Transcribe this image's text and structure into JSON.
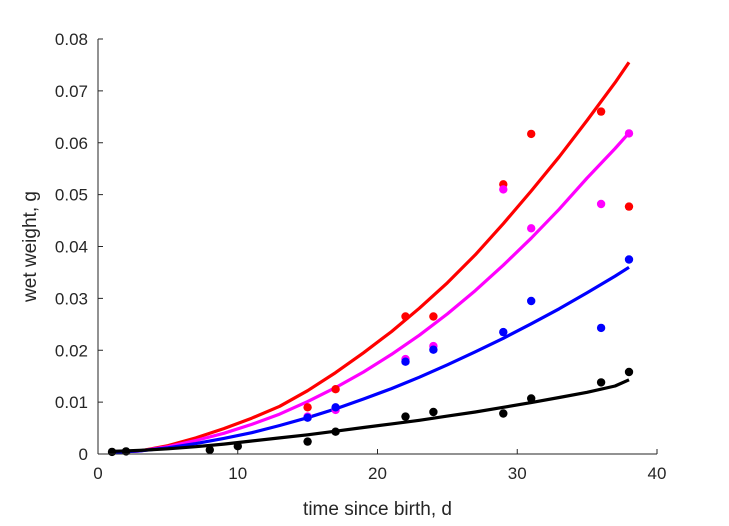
{
  "chart_data": {
    "type": "scatter",
    "xlabel": "time since birth, d",
    "ylabel": "wet weight, g",
    "xlim": [
      0,
      40
    ],
    "ylim": [
      0,
      0.08
    ],
    "xticks": [
      0,
      10,
      20,
      30,
      40
    ],
    "yticks": [
      0,
      0.01,
      0.02,
      0.03,
      0.04,
      0.05,
      0.06,
      0.07,
      0.08
    ],
    "x_tick_labels": [
      "0",
      "10",
      "20",
      "30",
      "40"
    ],
    "y_tick_labels": [
      "0",
      "0.01",
      "0.02",
      "0.03",
      "0.04",
      "0.05",
      "0.06",
      "0.07",
      "0.08"
    ],
    "grid": false,
    "legend": "none",
    "series": [
      {
        "color": "#ff0000",
        "points": [
          [
            15,
            0.009
          ],
          [
            17,
            0.0125
          ],
          [
            22,
            0.0265
          ],
          [
            24,
            0.0265
          ],
          [
            29,
            0.052
          ],
          [
            31,
            0.0617
          ],
          [
            36,
            0.066
          ],
          [
            38,
            0.0477
          ]
        ],
        "fit_x": [
          1,
          3,
          5,
          7,
          9,
          11,
          13,
          15,
          17,
          19,
          21,
          23,
          25,
          27,
          29,
          31,
          33,
          35,
          37,
          38
        ],
        "fit_y": [
          0.0003,
          0.0006,
          0.0016,
          0.0031,
          0.0049,
          0.0069,
          0.0092,
          0.0122,
          0.0157,
          0.0195,
          0.0236,
          0.0281,
          0.033,
          0.0384,
          0.0444,
          0.0507,
          0.0573,
          0.0643,
          0.0716,
          0.0755
        ]
      },
      {
        "color": "#ff00ff",
        "points": [
          [
            15,
            0.0072
          ],
          [
            17,
            0.0085
          ],
          [
            22,
            0.0183
          ],
          [
            24,
            0.0208
          ],
          [
            29,
            0.051
          ],
          [
            31,
            0.0435
          ],
          [
            36,
            0.0482
          ],
          [
            38,
            0.0618
          ]
        ],
        "fit_x": [
          1,
          3,
          5,
          7,
          9,
          11,
          13,
          15,
          17,
          19,
          21,
          23,
          25,
          27,
          29,
          31,
          33,
          35,
          37,
          38
        ],
        "fit_y": [
          0.0003,
          0.0006,
          0.0014,
          0.0026,
          0.004,
          0.0057,
          0.0077,
          0.0101,
          0.0128,
          0.0158,
          0.0192,
          0.0229,
          0.027,
          0.0315,
          0.0364,
          0.0416,
          0.0472,
          0.0532,
          0.0589,
          0.0619
        ]
      },
      {
        "color": "#0000ff",
        "points": [
          [
            15,
            0.007
          ],
          [
            17,
            0.009
          ],
          [
            22,
            0.0178
          ],
          [
            24,
            0.0201
          ],
          [
            29,
            0.0235
          ],
          [
            31,
            0.0295
          ],
          [
            36,
            0.0243
          ],
          [
            38,
            0.0375
          ]
        ],
        "fit_x": [
          1,
          3,
          5,
          7,
          9,
          11,
          13,
          15,
          17,
          19,
          21,
          23,
          25,
          27,
          29,
          31,
          33,
          35,
          37,
          38
        ],
        "fit_y": [
          0.0003,
          0.0006,
          0.0012,
          0.002,
          0.003,
          0.0041,
          0.0055,
          0.007,
          0.0087,
          0.0106,
          0.0126,
          0.0148,
          0.0172,
          0.0197,
          0.0223,
          0.0251,
          0.028,
          0.0311,
          0.0343,
          0.036
        ]
      },
      {
        "color": "#000000",
        "points": [
          [
            1,
            0.0004
          ],
          [
            2,
            0.0005
          ],
          [
            8,
            0.0008
          ],
          [
            10,
            0.0015
          ],
          [
            15,
            0.0024
          ],
          [
            17,
            0.0043
          ],
          [
            22,
            0.0072
          ],
          [
            24,
            0.0081
          ],
          [
            29,
            0.0078
          ],
          [
            31,
            0.0107
          ],
          [
            36,
            0.0138
          ],
          [
            38,
            0.0158
          ]
        ],
        "fit_x": [
          1,
          3,
          5,
          7,
          9,
          11,
          13,
          15,
          17,
          19,
          21,
          23,
          25,
          27,
          29,
          31,
          33,
          35,
          37,
          38
        ],
        "fit_y": [
          0.0005,
          0.0007,
          0.001,
          0.0014,
          0.0019,
          0.0025,
          0.0031,
          0.0037,
          0.0044,
          0.0051,
          0.0058,
          0.0065,
          0.0073,
          0.0081,
          0.009,
          0.0099,
          0.0109,
          0.0119,
          0.0131,
          0.0143
        ]
      }
    ]
  }
}
